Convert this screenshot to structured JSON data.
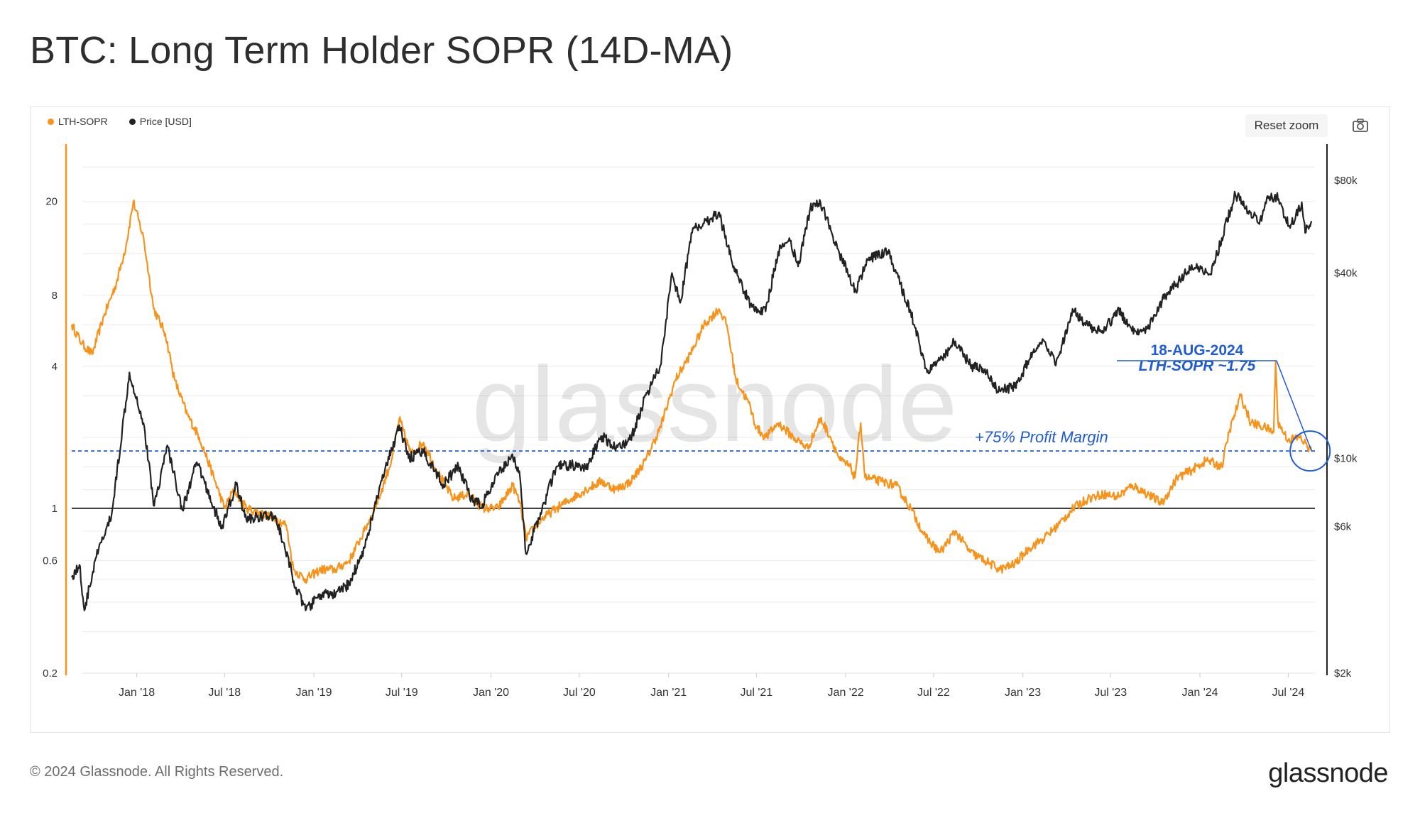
{
  "title": "BTC: Long Term Holder SOPR (14D-MA)",
  "legend": [
    {
      "label": "LTH-SOPR",
      "color": "#f7931a"
    },
    {
      "label": "Price [USD]",
      "color": "#222222"
    }
  ],
  "toolbar": {
    "reset_zoom": "Reset zoom",
    "camera_icon": "camera-icon"
  },
  "watermark": "glassnode",
  "footer": {
    "copyright": "© 2024 Glassnode. All Rights Reserved.",
    "logo": "glassnode"
  },
  "chart_data": {
    "type": "line",
    "x_ticks": [
      "Jan '18",
      "Jul '18",
      "Jan '19",
      "Jul '19",
      "Jan '20",
      "Jul '20",
      "Jan '21",
      "Jul '21",
      "Jan '22",
      "Jul '22",
      "Jan '23",
      "Jul '23",
      "Jan '24",
      "Jul '24"
    ],
    "x_range": [
      "2017-08-20",
      "2024-08-25"
    ],
    "left_axis": {
      "scale": "log",
      "ticks": [
        "20",
        "8",
        "4",
        "1",
        "0.6",
        "0.2"
      ],
      "tick_values": [
        20,
        8,
        4,
        1,
        0.6,
        0.2
      ],
      "range": [
        0.2,
        35
      ]
    },
    "right_axis": {
      "scale": "log",
      "ticks": [
        "$80k",
        "$40k",
        "$10k",
        "$6k",
        "$2k"
      ],
      "tick_values": [
        80000,
        40000,
        10000,
        6000,
        2000
      ],
      "range": [
        2000,
        105000
      ]
    },
    "grid": true,
    "legend_position": "top-left",
    "colors": {
      "sopr": "#f7931a",
      "price": "#222222",
      "annotation": "#1f5bd1"
    },
    "series": [
      {
        "name": "LTH-SOPR",
        "axis": "left",
        "points": [
          [
            "2017-08-20",
            6.0
          ],
          [
            "2017-09-10",
            5.0
          ],
          [
            "2017-10-01",
            4.5
          ],
          [
            "2017-10-25",
            6.5
          ],
          [
            "2017-11-20",
            9.0
          ],
          [
            "2017-12-10",
            13.0
          ],
          [
            "2017-12-25",
            20.0
          ],
          [
            "2018-01-15",
            14.0
          ],
          [
            "2018-02-05",
            7.0
          ],
          [
            "2018-03-01",
            5.5
          ],
          [
            "2018-03-20",
            3.5
          ],
          [
            "2018-04-15",
            2.5
          ],
          [
            "2018-05-10",
            2.0
          ],
          [
            "2018-06-01",
            1.5
          ],
          [
            "2018-07-01",
            1.0
          ],
          [
            "2018-07-20",
            1.2
          ],
          [
            "2018-08-15",
            1.0
          ],
          [
            "2018-09-15",
            0.95
          ],
          [
            "2018-10-15",
            0.9
          ],
          [
            "2018-11-05",
            0.85
          ],
          [
            "2018-11-20",
            0.55
          ],
          [
            "2018-12-15",
            0.5
          ],
          [
            "2019-01-15",
            0.55
          ],
          [
            "2019-02-15",
            0.55
          ],
          [
            "2019-03-15",
            0.6
          ],
          [
            "2019-04-15",
            0.8
          ],
          [
            "2019-05-15",
            1.1
          ],
          [
            "2019-06-10",
            1.6
          ],
          [
            "2019-06-26",
            2.4
          ],
          [
            "2019-07-20",
            1.7
          ],
          [
            "2019-08-15",
            1.9
          ],
          [
            "2019-09-15",
            1.4
          ],
          [
            "2019-10-15",
            1.1
          ],
          [
            "2019-11-15",
            1.15
          ],
          [
            "2019-12-15",
            1.0
          ],
          [
            "2020-01-15",
            1.0
          ],
          [
            "2020-02-15",
            1.25
          ],
          [
            "2020-03-01",
            1.05
          ],
          [
            "2020-03-13",
            0.75
          ],
          [
            "2020-04-15",
            0.9
          ],
          [
            "2020-05-15",
            1.0
          ],
          [
            "2020-06-15",
            1.1
          ],
          [
            "2020-07-15",
            1.2
          ],
          [
            "2020-08-15",
            1.3
          ],
          [
            "2020-09-15",
            1.2
          ],
          [
            "2020-10-15",
            1.3
          ],
          [
            "2020-11-15",
            1.6
          ],
          [
            "2020-12-15",
            2.2
          ],
          [
            "2021-01-15",
            3.5
          ],
          [
            "2021-02-15",
            4.5
          ],
          [
            "2021-03-15",
            6.0
          ],
          [
            "2021-04-15",
            7.0
          ],
          [
            "2021-05-01",
            6.0
          ],
          [
            "2021-05-20",
            3.5
          ],
          [
            "2021-06-15",
            2.8
          ],
          [
            "2021-07-01",
            2.2
          ],
          [
            "2021-07-20",
            2.0
          ],
          [
            "2021-08-15",
            2.3
          ],
          [
            "2021-09-15",
            2.0
          ],
          [
            "2021-10-15",
            1.8
          ],
          [
            "2021-11-10",
            2.4
          ],
          [
            "2021-12-01",
            2.0
          ],
          [
            "2021-12-20",
            1.6
          ],
          [
            "2022-01-10",
            1.5
          ],
          [
            "2022-01-20",
            1.35
          ],
          [
            "2022-02-01",
            2.3
          ],
          [
            "2022-02-10",
            1.35
          ],
          [
            "2022-03-15",
            1.3
          ],
          [
            "2022-04-15",
            1.25
          ],
          [
            "2022-05-15",
            1.0
          ],
          [
            "2022-06-15",
            0.75
          ],
          [
            "2022-07-15",
            0.65
          ],
          [
            "2022-08-15",
            0.8
          ],
          [
            "2022-09-15",
            0.65
          ],
          [
            "2022-10-15",
            0.6
          ],
          [
            "2022-11-15",
            0.55
          ],
          [
            "2022-12-15",
            0.58
          ],
          [
            "2023-01-15",
            0.68
          ],
          [
            "2023-02-15",
            0.75
          ],
          [
            "2023-03-15",
            0.85
          ],
          [
            "2023-04-15",
            1.0
          ],
          [
            "2023-05-15",
            1.1
          ],
          [
            "2023-06-15",
            1.15
          ],
          [
            "2023-07-15",
            1.12
          ],
          [
            "2023-08-15",
            1.25
          ],
          [
            "2023-09-15",
            1.15
          ],
          [
            "2023-10-15",
            1.05
          ],
          [
            "2023-11-15",
            1.35
          ],
          [
            "2023-12-15",
            1.45
          ],
          [
            "2024-01-15",
            1.6
          ],
          [
            "2024-02-15",
            1.5
          ],
          [
            "2024-03-01",
            2.1
          ],
          [
            "2024-03-25",
            3.0
          ],
          [
            "2024-04-15",
            2.3
          ],
          [
            "2024-05-15",
            2.2
          ],
          [
            "2024-06-01",
            2.1
          ],
          [
            "2024-06-05",
            4.2
          ],
          [
            "2024-06-10",
            2.3
          ],
          [
            "2024-07-01",
            1.95
          ],
          [
            "2024-07-25",
            2.0
          ],
          [
            "2024-08-18",
            1.75
          ]
        ]
      },
      {
        "name": "Price [USD]",
        "axis": "right",
        "points": [
          [
            "2017-08-20",
            4100
          ],
          [
            "2017-09-05",
            4500
          ],
          [
            "2017-09-15",
            3200
          ],
          [
            "2017-10-10",
            4800
          ],
          [
            "2017-11-10",
            6500
          ],
          [
            "2017-12-17",
            19000
          ],
          [
            "2018-01-15",
            13000
          ],
          [
            "2018-02-06",
            7000
          ],
          [
            "2018-03-05",
            11000
          ],
          [
            "2018-04-05",
            6800
          ],
          [
            "2018-05-05",
            9700
          ],
          [
            "2018-06-25",
            5900
          ],
          [
            "2018-07-25",
            8200
          ],
          [
            "2018-08-15",
            6300
          ],
          [
            "2018-09-15",
            6500
          ],
          [
            "2018-10-15",
            6400
          ],
          [
            "2018-11-25",
            3800
          ],
          [
            "2018-12-15",
            3200
          ],
          [
            "2019-01-15",
            3600
          ],
          [
            "2019-02-15",
            3600
          ],
          [
            "2019-03-15",
            3900
          ],
          [
            "2019-04-15",
            5100
          ],
          [
            "2019-05-15",
            7800
          ],
          [
            "2019-06-26",
            12800
          ],
          [
            "2019-07-15",
            10000
          ],
          [
            "2019-08-15",
            10500
          ],
          [
            "2019-09-25",
            8200
          ],
          [
            "2019-10-26",
            9400
          ],
          [
            "2019-11-25",
            7200
          ],
          [
            "2019-12-15",
            7100
          ],
          [
            "2020-01-15",
            8800
          ],
          [
            "2020-02-14",
            10300
          ],
          [
            "2020-03-01",
            8600
          ],
          [
            "2020-03-13",
            4900
          ],
          [
            "2020-04-15",
            6800
          ],
          [
            "2020-05-15",
            9400
          ],
          [
            "2020-06-15",
            9500
          ],
          [
            "2020-07-15",
            9200
          ],
          [
            "2020-08-15",
            11800
          ],
          [
            "2020-09-15",
            10800
          ],
          [
            "2020-10-15",
            11500
          ],
          [
            "2020-11-15",
            16000
          ],
          [
            "2020-12-15",
            20000
          ],
          [
            "2021-01-08",
            40000
          ],
          [
            "2021-01-25",
            32000
          ],
          [
            "2021-02-20",
            56000
          ],
          [
            "2021-03-15",
            58000
          ],
          [
            "2021-04-14",
            63000
          ],
          [
            "2021-05-20",
            40000
          ],
          [
            "2021-06-22",
            31000
          ],
          [
            "2021-07-20",
            30000
          ],
          [
            "2021-08-15",
            47000
          ],
          [
            "2021-09-07",
            52000
          ],
          [
            "2021-09-25",
            42000
          ],
          [
            "2021-10-20",
            65000
          ],
          [
            "2021-11-10",
            68000
          ],
          [
            "2021-12-15",
            48000
          ],
          [
            "2022-01-22",
            35000
          ],
          [
            "2022-02-15",
            44000
          ],
          [
            "2022-03-28",
            47000
          ],
          [
            "2022-04-15",
            40000
          ],
          [
            "2022-05-15",
            30000
          ],
          [
            "2022-06-18",
            19000
          ],
          [
            "2022-07-15",
            21000
          ],
          [
            "2022-08-15",
            24000
          ],
          [
            "2022-09-15",
            20000
          ],
          [
            "2022-10-15",
            19500
          ],
          [
            "2022-11-10",
            16500
          ],
          [
            "2022-12-15",
            17000
          ],
          [
            "2023-01-15",
            21000
          ],
          [
            "2023-02-15",
            24000
          ],
          [
            "2023-03-10",
            20000
          ],
          [
            "2023-04-15",
            30000
          ],
          [
            "2023-05-15",
            27000
          ],
          [
            "2023-06-15",
            25500
          ],
          [
            "2023-07-15",
            30300
          ],
          [
            "2023-08-20",
            26000
          ],
          [
            "2023-09-15",
            26500
          ],
          [
            "2023-10-25",
            34500
          ],
          [
            "2023-11-15",
            37000
          ],
          [
            "2023-12-15",
            42500
          ],
          [
            "2024-01-23",
            39500
          ],
          [
            "2024-02-15",
            52000
          ],
          [
            "2024-03-14",
            72000
          ],
          [
            "2024-04-15",
            63000
          ],
          [
            "2024-05-01",
            58000
          ],
          [
            "2024-05-21",
            70000
          ],
          [
            "2024-06-07",
            71000
          ],
          [
            "2024-07-05",
            56000
          ],
          [
            "2024-07-29",
            68000
          ],
          [
            "2024-08-05",
            54000
          ],
          [
            "2024-08-18",
            59000
          ]
        ]
      }
    ],
    "reference_lines": [
      {
        "value": 1,
        "axis": "left",
        "style": "solid"
      },
      {
        "value": 1.75,
        "axis": "left",
        "style": "dashed",
        "label": "+75% Profit Margin"
      }
    ],
    "annotation": {
      "line1": "18-AUG-2024",
      "line2": "LTH-SOPR ~1.75",
      "date": "2024-08-18",
      "value": 1.75
    }
  }
}
